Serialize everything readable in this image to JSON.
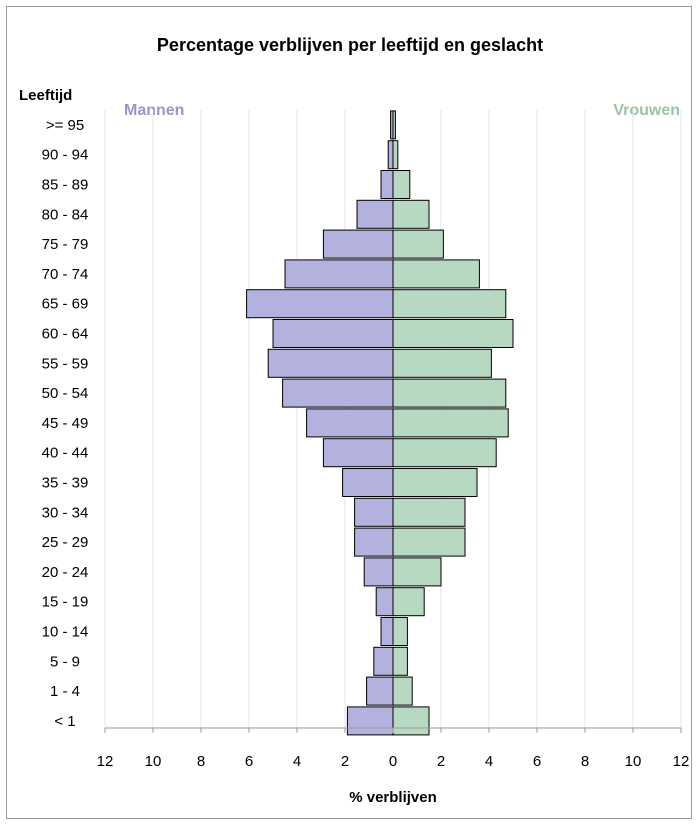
{
  "chart_data": {
    "type": "bar",
    "orientation": "horizontal-population-pyramid",
    "title": "Percentage verblijven per leeftijd en geslacht",
    "ylabel": "Leeftijd",
    "xlabel": "% verblijven",
    "left_label": "Mannen",
    "right_label": "Vrouwen",
    "xlim": [
      -12,
      12
    ],
    "x_ticks": [
      12,
      10,
      8,
      6,
      4,
      2,
      0,
      2,
      4,
      6,
      8,
      10,
      12
    ],
    "grid": "vertical",
    "categories": [
      ">= 95",
      "90 - 94",
      "85 - 89",
      "80 - 84",
      "75 - 79",
      "70 - 74",
      "65 - 69",
      "60 - 64",
      "55 - 59",
      "50 - 54",
      "45 - 49",
      "40 - 44",
      "35 - 39",
      "30 - 34",
      "25 - 29",
      "20 - 24",
      "15 - 19",
      "10 - 14",
      "5 - 9",
      "1 - 4",
      "< 1"
    ],
    "series": [
      {
        "name": "Mannen",
        "color": "#b3b1de",
        "values": [
          0.1,
          0.2,
          0.5,
          1.5,
          2.9,
          4.5,
          6.1,
          5.0,
          5.2,
          4.6,
          3.6,
          2.9,
          2.1,
          1.6,
          1.6,
          1.2,
          0.7,
          0.5,
          0.8,
          1.1,
          1.9
        ]
      },
      {
        "name": "Vrouwen",
        "color": "#b8d9c1",
        "values": [
          0.1,
          0.2,
          0.7,
          1.5,
          2.1,
          3.6,
          4.7,
          5.0,
          4.1,
          4.7,
          4.8,
          4.3,
          3.5,
          3.0,
          3.0,
          2.0,
          1.3,
          0.6,
          0.6,
          0.8,
          1.5
        ]
      }
    ]
  },
  "colors": {
    "mannen_label": "#9997c7",
    "vrouwen_label": "#9dc3a6"
  }
}
